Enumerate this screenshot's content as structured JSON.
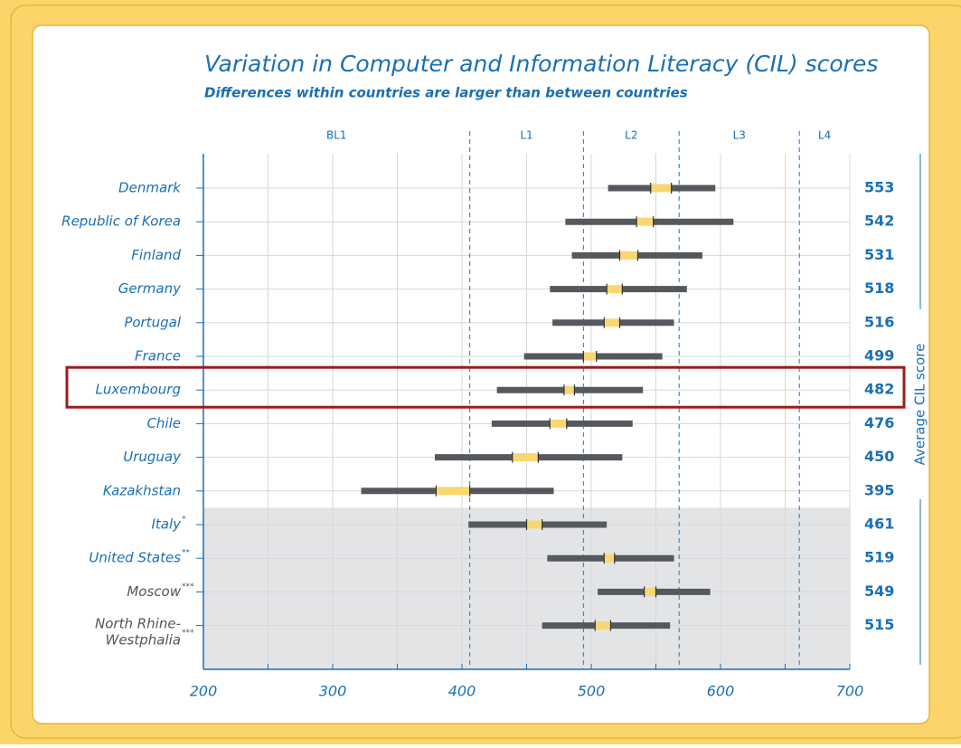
{
  "chart_data": {
    "type": "range",
    "title": "Variation in Computer and Information Literacy (CIL) scores",
    "subtitle": "Differences within countries are larger than between countries",
    "y2_label": "Average CIL score",
    "categories": [
      "Denmark",
      "Republic of Korea",
      "Finland",
      "Germany",
      "Portugal",
      "France",
      "Luxembourg",
      "Chile",
      "Uruguay",
      "Kazakhstan",
      "Italy",
      "United States",
      "Moscow",
      "North Rhine-Westphalia"
    ],
    "footnote_marks": [
      null,
      null,
      null,
      null,
      null,
      null,
      null,
      null,
      null,
      null,
      "*",
      "**",
      "***",
      "***"
    ],
    "values": [
      553,
      542,
      531,
      518,
      516,
      499,
      482,
      476,
      450,
      395,
      461,
      519,
      549,
      515
    ],
    "low": [
      513,
      480,
      485,
      468,
      470,
      448,
      427,
      423,
      379,
      322,
      405,
      466,
      505,
      462
    ],
    "ci_low": [
      546,
      535,
      522,
      512,
      510,
      494,
      479,
      468,
      439,
      380,
      450,
      510,
      541,
      503
    ],
    "ci_high": [
      562,
      548,
      536,
      524,
      522,
      504,
      487,
      481,
      459,
      406,
      462,
      518,
      550,
      515
    ],
    "high": [
      596,
      610,
      586,
      574,
      564,
      555,
      540,
      532,
      524,
      471,
      512,
      564,
      592,
      561
    ],
    "range_color": "#55595e",
    "ci_color": "#f8d773",
    "xlim": [
      200,
      700
    ],
    "xticks": [
      200,
      300,
      400,
      500,
      600,
      700
    ],
    "xgrid": [
      250,
      300,
      350,
      400,
      450,
      500,
      550,
      600,
      650,
      700
    ],
    "level_names": [
      "BL1",
      "L1",
      "L2",
      "L3",
      "L4"
    ],
    "level_bounds": [
      406,
      494,
      568,
      661
    ],
    "highlight": "Luxembourg",
    "shaded_from": "Italy",
    "gray_labels": [
      "Moscow",
      "North Rhine-Westphalia"
    ]
  }
}
